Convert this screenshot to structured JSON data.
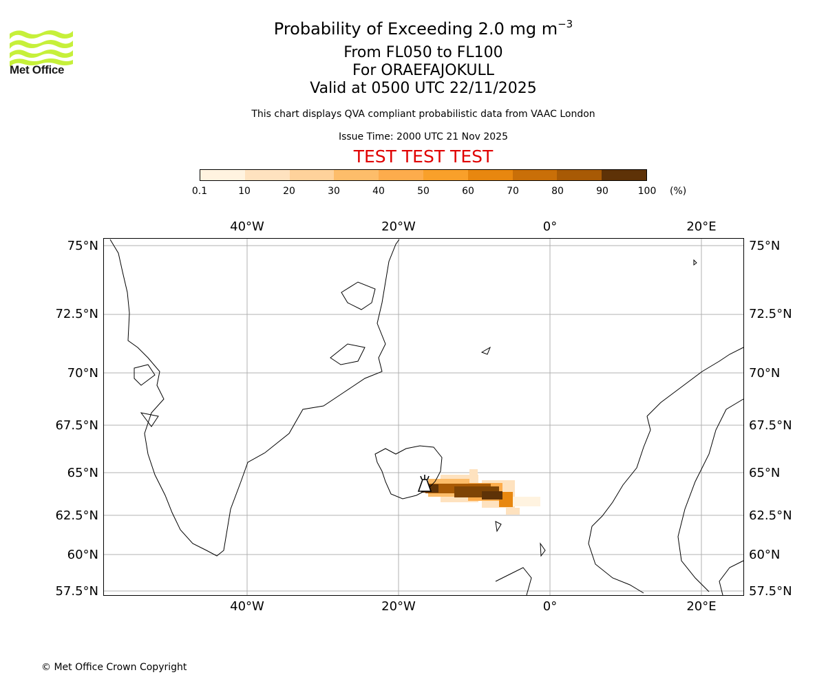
{
  "header": {
    "logo_text": "Met Office",
    "title_main": "Probability of Exceeding 2.0 mg m",
    "title_exponent": "−3",
    "flight_levels": "From FL050 to FL100",
    "volcano": "For ORAEFAJOKULL",
    "valid_time": "Valid at 0500 UTC 22/11/2025",
    "description": "This chart displays QVA compliant probabilistic data from VAAC London",
    "issue_time": "Issue Time: 2000 UTC 21 Nov 2025",
    "test_banner": "TEST TEST TEST"
  },
  "colorbar": {
    "labels": [
      "0.1",
      "10",
      "20",
      "30",
      "40",
      "50",
      "60",
      "70",
      "80",
      "90",
      "100"
    ],
    "unit": "(%)",
    "colors": [
      "#fff3e0",
      "#fee2bf",
      "#fed29b",
      "#fdbd6a",
      "#fdac4c",
      "#f9a02a",
      "#e8870f",
      "#c96f08",
      "#a85a05",
      "#7e4405",
      "#5e3207"
    ]
  },
  "map": {
    "lon_labels": [
      "40°W",
      "20°W",
      "0°",
      "20°E"
    ],
    "lat_labels": [
      "75°N",
      "72.5°N",
      "70°N",
      "67.5°N",
      "65°N",
      "62.5°N",
      "60°N",
      "57.5°N"
    ],
    "volcano_marker": "volcano-icon",
    "frame_color": "#000000",
    "grid_color": "#b0b0b0"
  },
  "footer": {
    "copyright": "© Met Office Crown Copyright"
  }
}
